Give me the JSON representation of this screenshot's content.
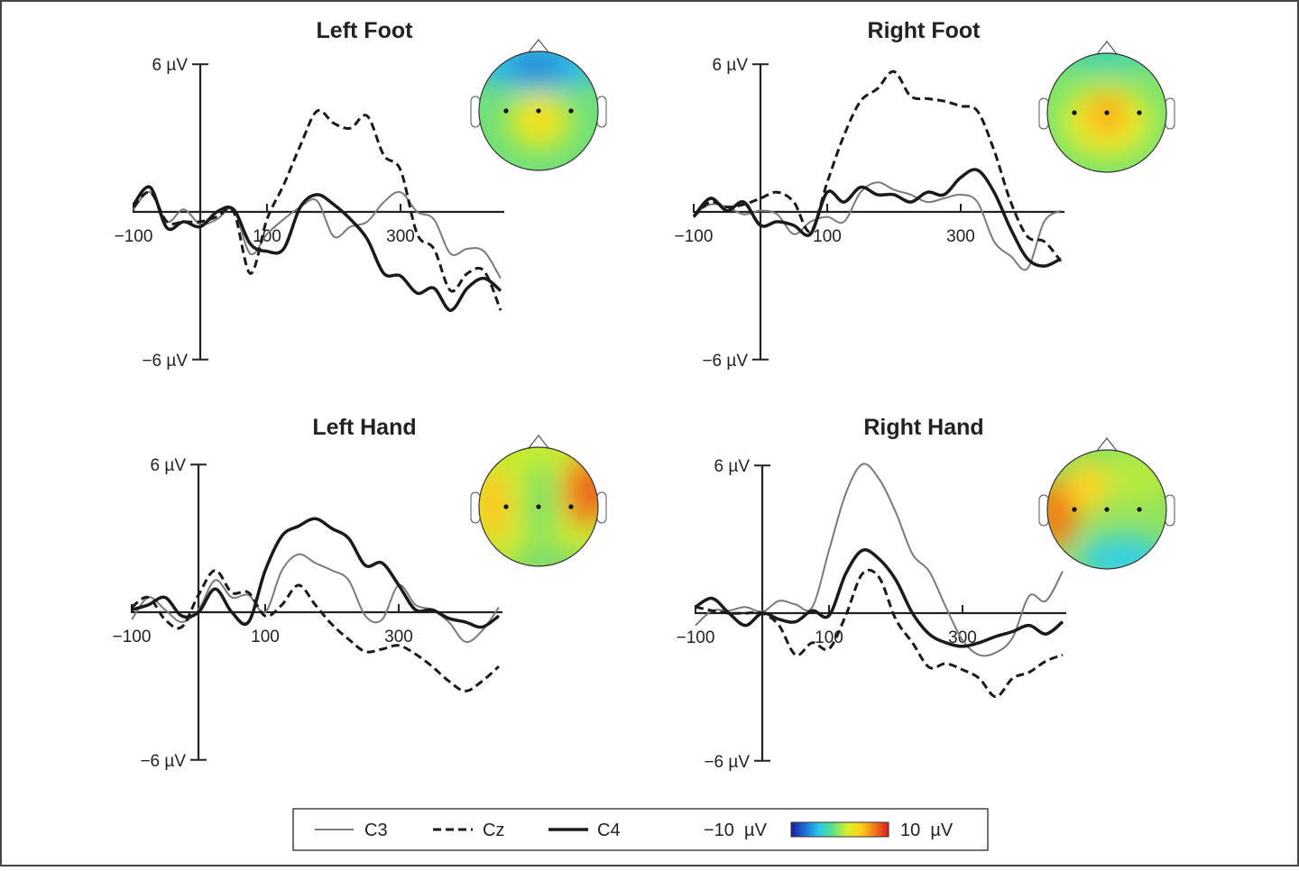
{
  "chart_data": [
    {
      "type": "line",
      "title": "Left Foot",
      "xlabel": "",
      "ylabel": "",
      "x_unit": "ms",
      "xlim": [
        -100,
        450
      ],
      "ylim": [
        -6,
        6
      ],
      "x_tick_labels": [
        "−100",
        "100",
        "300"
      ],
      "x_tick_values": [
        -100,
        100,
        300
      ],
      "y_tick_labels": [
        "6 µV",
        "−6 µV"
      ],
      "y_tick_values": [
        6,
        -6
      ],
      "x": [
        -100,
        -75,
        -50,
        -25,
        0,
        25,
        50,
        75,
        100,
        125,
        150,
        175,
        200,
        225,
        250,
        275,
        300,
        325,
        350,
        375,
        400,
        425,
        450
      ],
      "series": [
        {
          "name": "C3",
          "values": [
            0.1,
            0.8,
            -0.4,
            0.1,
            -0.5,
            -0.3,
            0.1,
            -1.7,
            -0.9,
            -0.3,
            0.2,
            0.45,
            -1.0,
            -0.6,
            -0.4,
            0.4,
            0.8,
            0,
            -0.3,
            -1.7,
            -1.5,
            -1.6,
            -2.7
          ]
        },
        {
          "name": "Cz",
          "values": [
            0.2,
            0.8,
            -0.4,
            -0.4,
            -0.4,
            -0.2,
            0,
            -2.5,
            -0.3,
            1.1,
            2.7,
            4.1,
            3.6,
            3.4,
            3.9,
            2.3,
            1.7,
            -0.9,
            -1.5,
            -3.2,
            -2.5,
            -2.4,
            -4.0
          ]
        },
        {
          "name": "C4",
          "values": [
            0.3,
            1.0,
            -0.65,
            -0.4,
            -0.6,
            0,
            0.1,
            -1.3,
            -1.6,
            -1.5,
            0.2,
            0.7,
            0.3,
            -0.3,
            -1.1,
            -2.5,
            -2.6,
            -3.3,
            -3.1,
            -4.0,
            -3.1,
            -2.7,
            -3.2
          ]
        }
      ]
    },
    {
      "type": "line",
      "title": "Right Foot",
      "xlabel": "",
      "ylabel": "",
      "x_unit": "ms",
      "xlim": [
        -100,
        450
      ],
      "ylim": [
        -6,
        6
      ],
      "x_tick_labels": [
        "−100",
        "100",
        "300"
      ],
      "x_tick_values": [
        -100,
        100,
        300
      ],
      "y_tick_labels": [
        "6 µV",
        "−6 µV"
      ],
      "y_tick_values": [
        6,
        -6
      ],
      "x": [
        -100,
        -75,
        -50,
        -25,
        0,
        25,
        50,
        75,
        100,
        125,
        150,
        175,
        200,
        225,
        250,
        275,
        300,
        325,
        350,
        375,
        400,
        425,
        450
      ],
      "series": [
        {
          "name": "C3",
          "values": [
            -0.1,
            0.3,
            0.2,
            -0.1,
            0.05,
            -0.1,
            -0.9,
            -0.4,
            -0.2,
            -0.4,
            0.8,
            1.2,
            0.9,
            0.7,
            0.4,
            0.55,
            0.7,
            0.4,
            -1.2,
            -1.8,
            -2.3,
            -0.4,
            0.05
          ]
        },
        {
          "name": "Cz",
          "values": [
            -0.2,
            0.4,
            0.2,
            0.3,
            0.55,
            0.8,
            0.4,
            -0.8,
            1.2,
            3.1,
            4.5,
            5.0,
            5.7,
            4.7,
            4.6,
            4.5,
            4.3,
            4.1,
            2.5,
            0.4,
            -1.0,
            -1.2,
            -2.0
          ]
        },
        {
          "name": "C4",
          "values": [
            -0.2,
            0.55,
            0.05,
            0.4,
            -0.55,
            -0.4,
            -0.55,
            -0.9,
            0.8,
            0.4,
            1.0,
            0.7,
            0.7,
            0.4,
            0.8,
            0.7,
            1.4,
            1.7,
            0.8,
            -0.7,
            -1.9,
            -2.2,
            -1.9
          ]
        }
      ]
    },
    {
      "type": "line",
      "title": "Left Hand",
      "xlabel": "",
      "ylabel": "",
      "x_unit": "ms",
      "xlim": [
        -100,
        450
      ],
      "ylim": [
        -6,
        6
      ],
      "x_tick_labels": [
        "−100",
        "100",
        "300"
      ],
      "x_tick_values": [
        -100,
        100,
        300
      ],
      "y_tick_labels": [
        "6 µV",
        "−6 µV"
      ],
      "y_tick_values": [
        6,
        -6
      ],
      "x": [
        -100,
        -75,
        -50,
        -25,
        0,
        25,
        50,
        75,
        100,
        125,
        150,
        175,
        200,
        225,
        250,
        275,
        300,
        325,
        350,
        375,
        400,
        425,
        450
      ],
      "series": [
        {
          "name": "C3",
          "values": [
            -0.3,
            0.6,
            0.1,
            -0.4,
            0.1,
            1.3,
            0.6,
            0.7,
            0,
            1.7,
            2.35,
            2.0,
            1.7,
            1.3,
            -0.15,
            -0.3,
            1.1,
            0.3,
            0.1,
            -0.4,
            -1.2,
            -0.75,
            0.2
          ]
        },
        {
          "name": "Cz",
          "values": [
            0.2,
            0.6,
            -0.3,
            -0.6,
            0.7,
            1.7,
            0.8,
            0.8,
            -0.15,
            0.3,
            1.1,
            0.3,
            -0.5,
            -1.1,
            -1.6,
            -1.5,
            -1.35,
            -1.7,
            -2.2,
            -2.8,
            -3.2,
            -2.8,
            -2.2
          ]
        },
        {
          "name": "C4",
          "values": [
            0.1,
            0.3,
            0.6,
            -0.15,
            0,
            0.95,
            0,
            -0.4,
            1.7,
            3.1,
            3.5,
            3.8,
            3.4,
            3.0,
            1.9,
            2.0,
            1.1,
            0.1,
            0.1,
            -0.25,
            -0.4,
            -0.6,
            -0.15
          ]
        }
      ]
    },
    {
      "type": "line",
      "title": "Right Hand",
      "xlabel": "",
      "ylabel": "",
      "x_unit": "ms",
      "xlim": [
        -100,
        450
      ],
      "ylim": [
        -6,
        6
      ],
      "x_tick_labels": [
        "−100",
        "100",
        "300"
      ],
      "x_tick_values": [
        -100,
        100,
        300
      ],
      "y_tick_labels": [
        "6 µV",
        "−6 µV"
      ],
      "y_tick_values": [
        6,
        -6
      ],
      "x": [
        -100,
        -75,
        -50,
        -25,
        0,
        25,
        50,
        75,
        100,
        125,
        150,
        175,
        200,
        225,
        250,
        275,
        300,
        325,
        350,
        375,
        400,
        425,
        450
      ],
      "series": [
        {
          "name": "C3",
          "values": [
            -0.5,
            0.1,
            0.1,
            0.25,
            0.05,
            0.5,
            0.35,
            0.25,
            2.55,
            4.85,
            6.05,
            5.45,
            4.1,
            2.4,
            1.7,
            0.25,
            -1.1,
            -1.7,
            -1.6,
            -1.0,
            0.7,
            0.5,
            1.7
          ]
        },
        {
          "name": "Cz",
          "values": [
            0.25,
            0.1,
            0,
            0,
            0,
            -0.5,
            -1.7,
            -1.2,
            -1.45,
            -0.1,
            1.6,
            1.45,
            -0.25,
            -1.2,
            -2.2,
            -2.05,
            -2.3,
            -2.65,
            -3.4,
            -2.65,
            -2.4,
            -1.95,
            -1.7
          ]
        },
        {
          "name": "C4",
          "values": [
            0.25,
            0.6,
            0,
            -0.5,
            0,
            -0.25,
            -0.35,
            0.1,
            -0.1,
            1.6,
            2.55,
            2.2,
            1.35,
            0,
            -0.85,
            -1.2,
            -1.35,
            -1.2,
            -0.95,
            -0.75,
            -0.5,
            -0.85,
            -0.35
          ]
        }
      ]
    }
  ],
  "topomaps": [
    {
      "condition": "Left Foot",
      "pattern": "blue frontal, yellow central maximum at Cz"
    },
    {
      "condition": "Right Foot",
      "pattern": "orange central maximum at Cz, green periphery"
    },
    {
      "condition": "Left Hand",
      "pattern": "red/orange right lateral maximum near C4"
    },
    {
      "condition": "Right Hand",
      "pattern": "orange left lateral maximum near C3, cyan right posterior"
    }
  ],
  "legend": {
    "items": [
      {
        "label": "C3",
        "style": "thin-gray-solid",
        "color": "#7a7a7a"
      },
      {
        "label": "Cz",
        "style": "dashed-black",
        "color": "#1a1a1a"
      },
      {
        "label": "C4",
        "style": "thick-black-solid",
        "color": "#1a1a1a"
      }
    ],
    "colorbar": {
      "min_label": "−10  µV",
      "max_label": "10  µV",
      "min": -10,
      "max": 10,
      "colors": [
        "#1e1e9c",
        "#1c6fd6",
        "#27c8e8",
        "#5ee08a",
        "#d8ef2e",
        "#ffd21c",
        "#f27b1c",
        "#d81e1e"
      ]
    }
  }
}
